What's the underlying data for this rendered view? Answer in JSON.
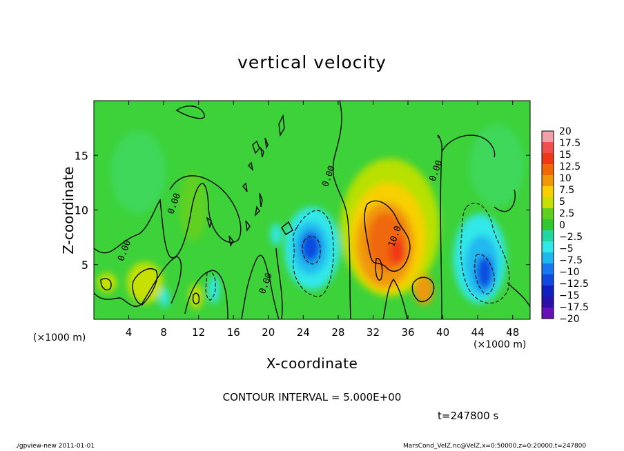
{
  "chart_data": {
    "type": "heatmap",
    "title": "vertical velocity",
    "xlabel": "X-coordinate",
    "ylabel": "Z-coordinate",
    "x_unit_label": "(×1000 m)",
    "y_unit_label": "(×1000 m)",
    "xlim": [
      0,
      50
    ],
    "ylim": [
      0,
      20
    ],
    "x_ticks": [
      4,
      8,
      12,
      16,
      20,
      24,
      28,
      32,
      36,
      40,
      44,
      48
    ],
    "y_ticks": [
      5,
      10,
      15
    ],
    "contour_labels": [
      {
        "text": "0.00",
        "x": 3.8,
        "y": 6.2
      },
      {
        "text": "0.00",
        "x": 9.5,
        "y": 10.5
      },
      {
        "text": "0.00",
        "x": 20.0,
        "y": 3.2
      },
      {
        "text": "0.00",
        "x": 27.2,
        "y": 13.0
      },
      {
        "text": "10.0",
        "x": 34.8,
        "y": 7.5
      },
      {
        "text": "0.00",
        "x": 39.5,
        "y": 13.5
      }
    ],
    "colorbar": {
      "levels": [
        20,
        17.5,
        15,
        12.5,
        10,
        7.5,
        5,
        2.5,
        0,
        -2.5,
        -5,
        -7.5,
        -10,
        -12.5,
        -15,
        -17.5,
        -20
      ],
      "labels": [
        "20",
        "17.5",
        "15",
        "12.5",
        "10",
        "7.5",
        "5",
        "2.5",
        "0",
        "−2.5",
        "−5",
        "−7.5",
        "−10",
        "−12.5",
        "−15",
        "−17.5",
        "−20"
      ],
      "colors": [
        "#f2a0a8",
        "#ee5050",
        "#f03818",
        "#f06808",
        "#f09808",
        "#f8d000",
        "#c8e000",
        "#60d020",
        "#30c830",
        "#20d8a0",
        "#30e8e8",
        "#20b8f0",
        "#1878f0",
        "#1048e0",
        "#1020c0",
        "#2810a8",
        "#6810b8"
      ]
    },
    "features": [
      {
        "kind": "updraft",
        "x_center": 34,
        "z_center": 7,
        "peak": 12.5
      },
      {
        "kind": "downdraft",
        "x_center": 25.2,
        "z_center": 6.8,
        "peak": -12
      },
      {
        "kind": "downdraft",
        "x_center": 44.8,
        "z_center": 4.5,
        "peak": -13
      },
      {
        "kind": "updraft",
        "x_center": 5.5,
        "z_center": 3.3,
        "peak": 6
      },
      {
        "kind": "updraft",
        "x_center": 38,
        "z_center": 2.5,
        "peak": 8
      }
    ],
    "contour_interval_text": "CONTOUR INTERVAL = 5.000E+00",
    "time_text": "t=247800 s"
  },
  "footer": {
    "left": "./gpview-new   2011-01-01",
    "right": "MarsCond_VelZ.nc@VelZ,x=0:50000,z=0:20000,t=247800"
  }
}
